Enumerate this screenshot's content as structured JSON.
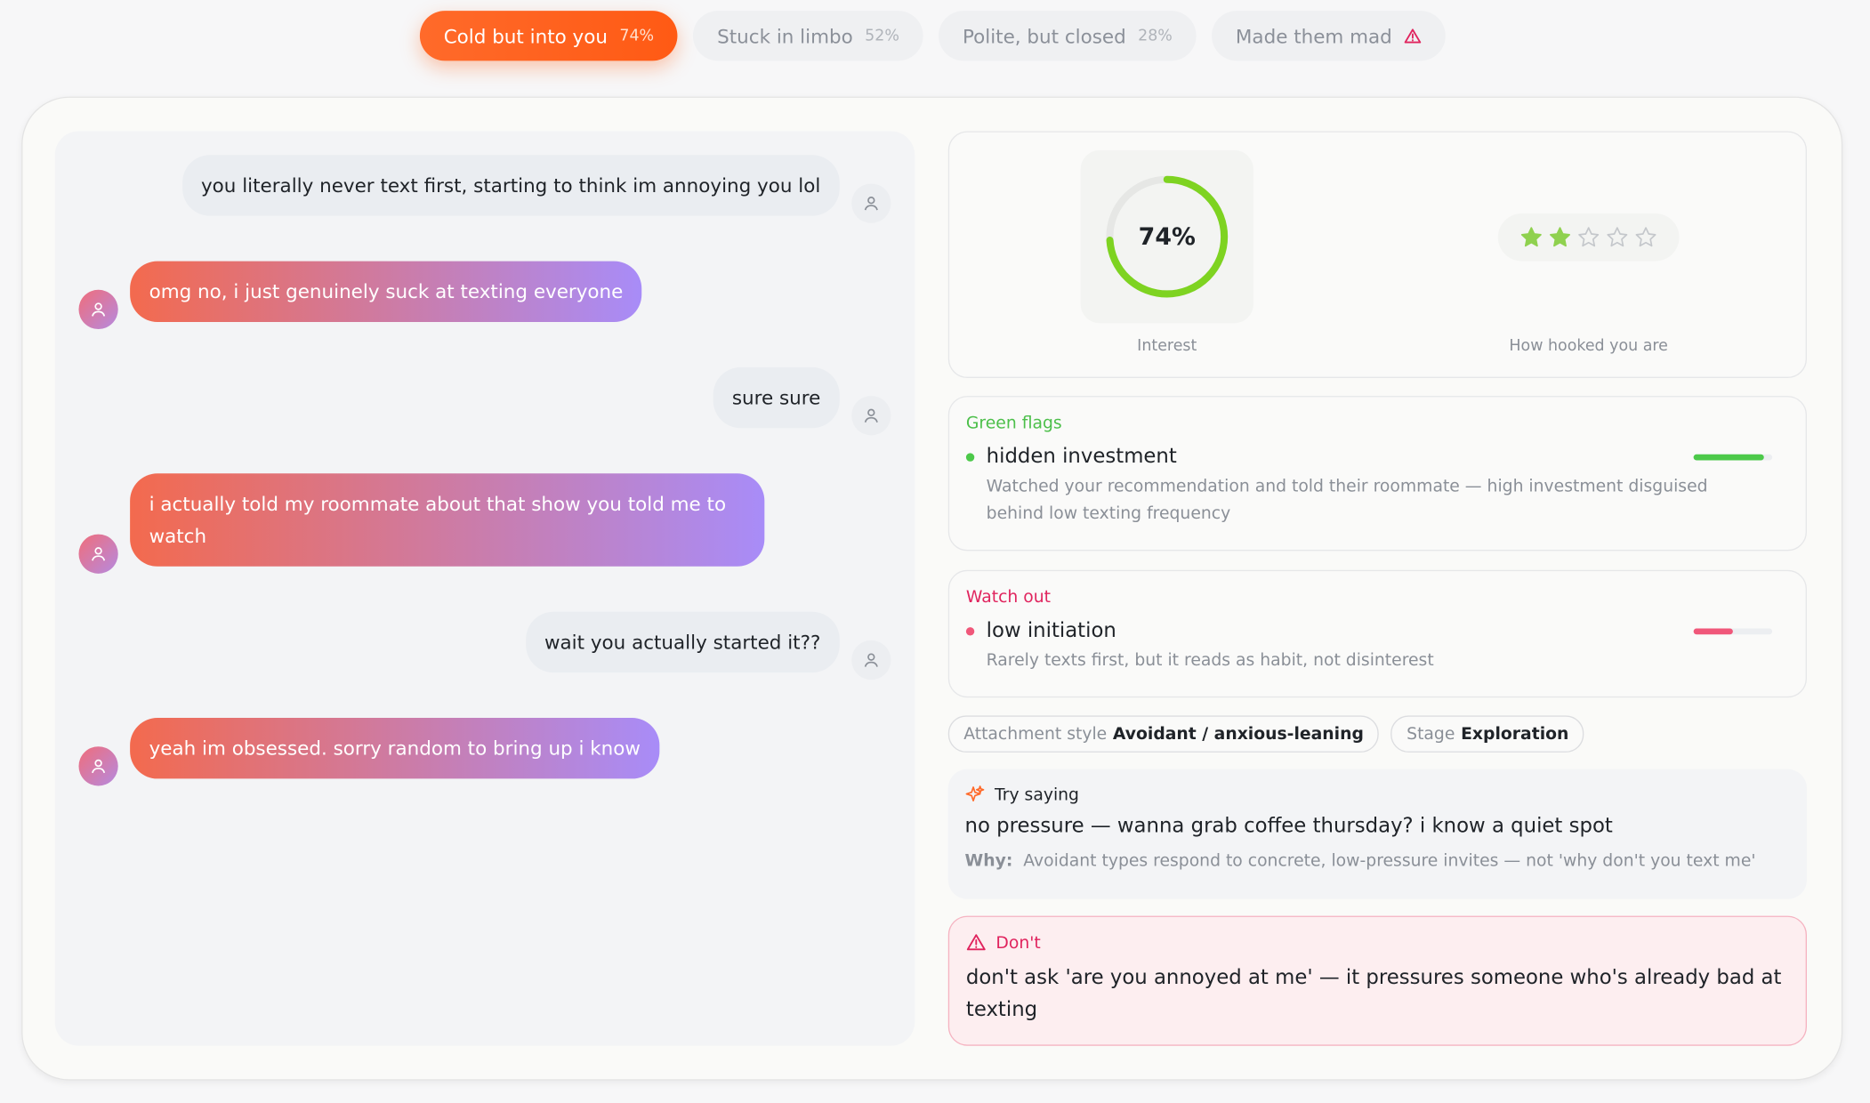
{
  "tabs": [
    {
      "label": "Cold but into you",
      "score": "74%"
    },
    {
      "label": "Stuck in limbo",
      "score": "52%"
    },
    {
      "label": "Polite, but closed",
      "score": "28%"
    },
    {
      "label": "Made them mad"
    }
  ],
  "conversation": [
    {
      "you": "you literally never text first, starting to think im annoying you lol",
      "them": "omg no, i just genuinely suck at texting everyone"
    },
    {
      "you": "sure sure",
      "them": "i actually told my roommate about that show you told me to watch"
    },
    {
      "you": "wait you actually started it??",
      "them": "yeah im obsessed. sorry random to bring up i know"
    }
  ],
  "metrics": {
    "interest": {
      "value": 74,
      "label": "74%",
      "caption": "Interest"
    },
    "hooked": {
      "stars": 2,
      "total": 5,
      "caption": "How hooked you are"
    }
  },
  "green_flags": {
    "title": "Green flags",
    "items": [
      {
        "name": "hidden investment",
        "detail": "Watched your recommendation and told their roommate — high investment disguised behind low texting frequency",
        "strength": 90
      }
    ]
  },
  "watch_out": {
    "title": "Watch out",
    "items": [
      {
        "name": "low initiation",
        "detail": "Rarely texts first, but it reads as habit, not disinterest",
        "strength": 50
      }
    ]
  },
  "tags": [
    {
      "key": "Attachment style",
      "value": "Avoidant / anxious-leaning"
    },
    {
      "key": "Stage",
      "value": "Exploration"
    }
  ],
  "try_saying": {
    "title": "Try saying",
    "text": "no pressure — wanna grab coffee thursday? i know a quiet spot",
    "why_label": "Why:",
    "why": "Avoidant types respond to concrete, low-pressure invites — not 'why don't you text me'"
  },
  "dont": {
    "title": "Don't",
    "text": "don't ask 'are you annoyed at me' — it pressures someone who's already bad at texting"
  }
}
